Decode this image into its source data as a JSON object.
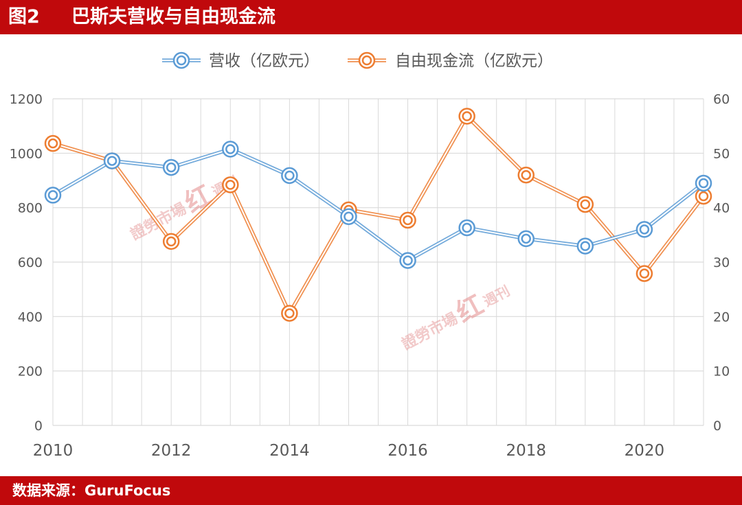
{
  "header": {
    "figure_label": "图2",
    "title": "巴斯夫营收与自由现金流"
  },
  "footer": {
    "source": "数据来源：GuruFocus"
  },
  "watermark": {
    "text": "證勞市場",
    "mark": "红",
    "suffix": "週刊"
  },
  "colors": {
    "revenue": "#5b9bd5",
    "fcf": "#ed7d31",
    "brand_red": "#c0090c",
    "grid": "#d9d9d9"
  },
  "chart_data": {
    "type": "line",
    "x": [
      2010,
      2011,
      2012,
      2013,
      2014,
      2015,
      2016,
      2017,
      2018,
      2019,
      2020,
      2021
    ],
    "x_tick_labels": [
      "2010",
      "2012",
      "2014",
      "2016",
      "2018",
      "2020"
    ],
    "y_left_ticks": [
      "0",
      "200",
      "400",
      "600",
      "800",
      "1000",
      "1200"
    ],
    "y_right_ticks": [
      "0",
      "10",
      "20",
      "30",
      "40",
      "50",
      "60"
    ],
    "y_left_lim": [
      0,
      1200
    ],
    "y_right_lim": [
      0,
      60
    ],
    "xlim": [
      2010,
      2021
    ],
    "grid": true,
    "legend_position": "top",
    "series": [
      {
        "name": "营收（亿欧元）",
        "axis": "left",
        "values": [
          846,
          972,
          948,
          1015,
          918,
          767,
          606,
          726,
          686,
          659,
          720,
          890
        ]
      },
      {
        "name": "自由现金流（亿欧元）",
        "axis": "right",
        "values": [
          51.8,
          48.6,
          33.8,
          44.2,
          20.6,
          39.6,
          37.7,
          56.8,
          46.0,
          40.6,
          27.9,
          42.1
        ]
      }
    ]
  }
}
